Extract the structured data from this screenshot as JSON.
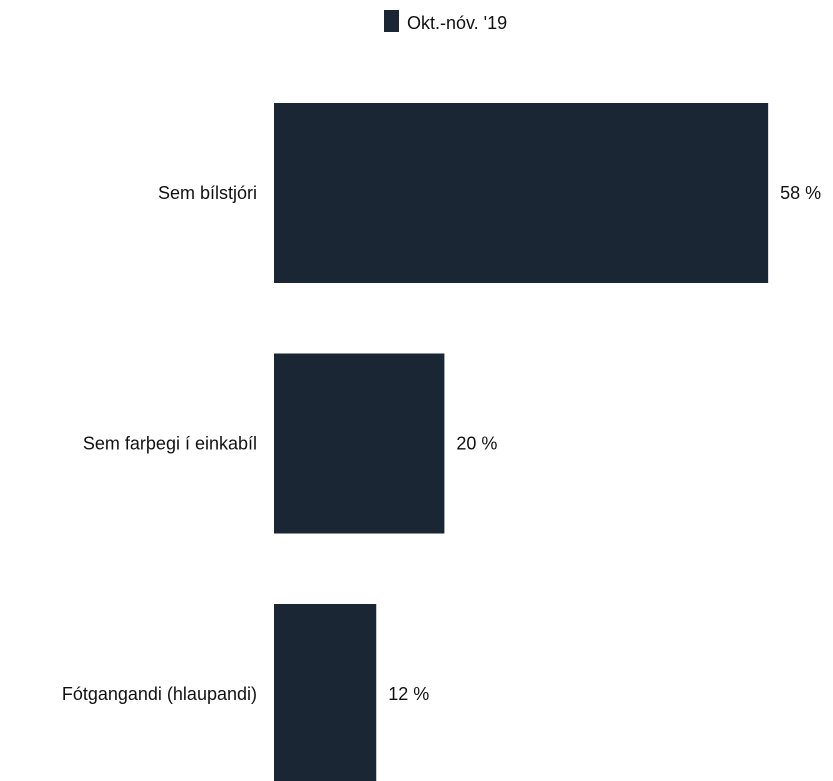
{
  "chart_data": {
    "type": "bar",
    "orientation": "horizontal",
    "categories": [
      "Sem bílstjóri",
      "Sem farþegi í einkabíl",
      "Fótgangandi (hlaupandi)"
    ],
    "series": [
      {
        "name": "Okt.-nóv. '19",
        "values": [
          58,
          20,
          12
        ],
        "value_labels": [
          "58 %",
          "20 %",
          "12 %"
        ]
      }
    ],
    "xlim": [
      0,
      60
    ],
    "grid": false,
    "legend": "top-center"
  },
  "colors": {
    "series": "#1a2634",
    "text": "#111111"
  }
}
